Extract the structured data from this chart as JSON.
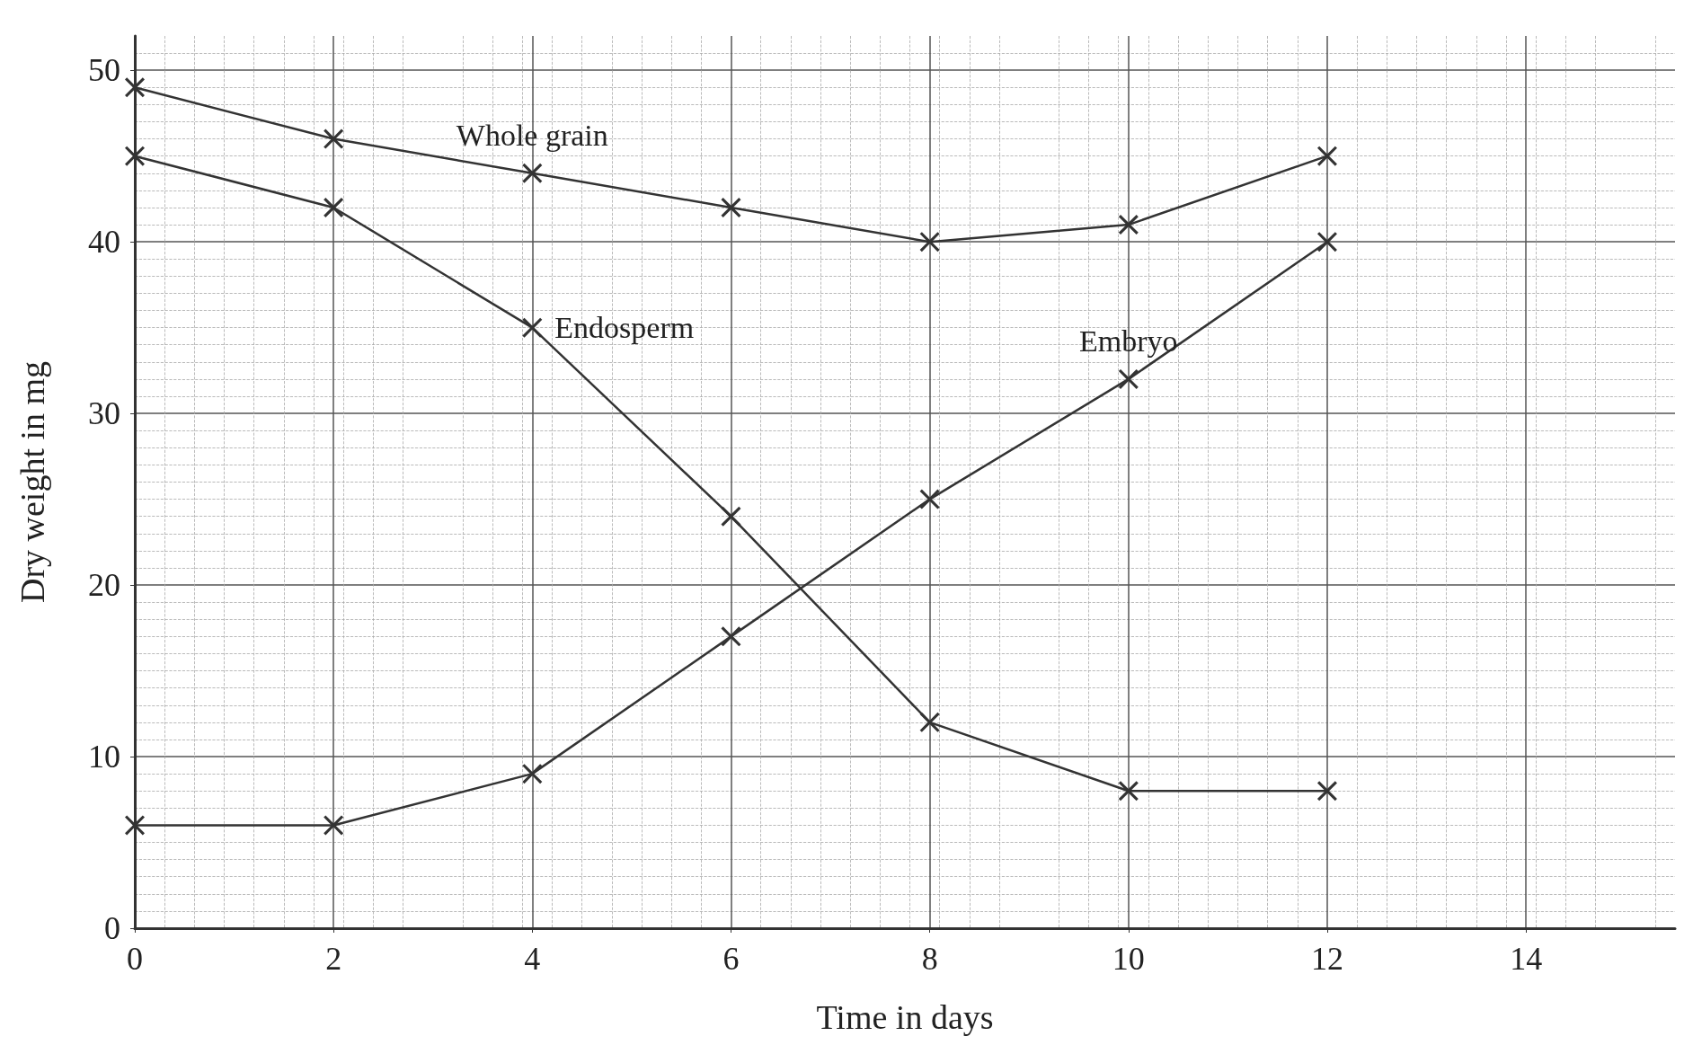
{
  "chart_data": {
    "type": "line",
    "xlabel": "Time in days",
    "ylabel": "Dry weight in mg",
    "x": [
      0,
      2,
      4,
      6,
      8,
      10,
      12
    ],
    "series": [
      {
        "name": "Whole grain",
        "color": "#333333",
        "values": [
          49,
          46,
          44,
          42,
          40,
          41,
          45
        ]
      },
      {
        "name": "Endosperm",
        "color": "#333333",
        "values": [
          45,
          42,
          35,
          24,
          12,
          8,
          8
        ]
      },
      {
        "name": "Embryo",
        "color": "#333333",
        "values": [
          6,
          6,
          9,
          17,
          25,
          32,
          40
        ]
      }
    ],
    "xlim": [
      0,
      15.5
    ],
    "xticks": [
      0,
      2,
      4,
      6,
      8,
      10,
      12,
      14
    ],
    "ylim": [
      0,
      52
    ],
    "yticks": [
      0,
      10,
      20,
      30,
      40,
      50
    ],
    "grid": true,
    "legend": false,
    "marker": "cross",
    "line_style": "solid"
  }
}
